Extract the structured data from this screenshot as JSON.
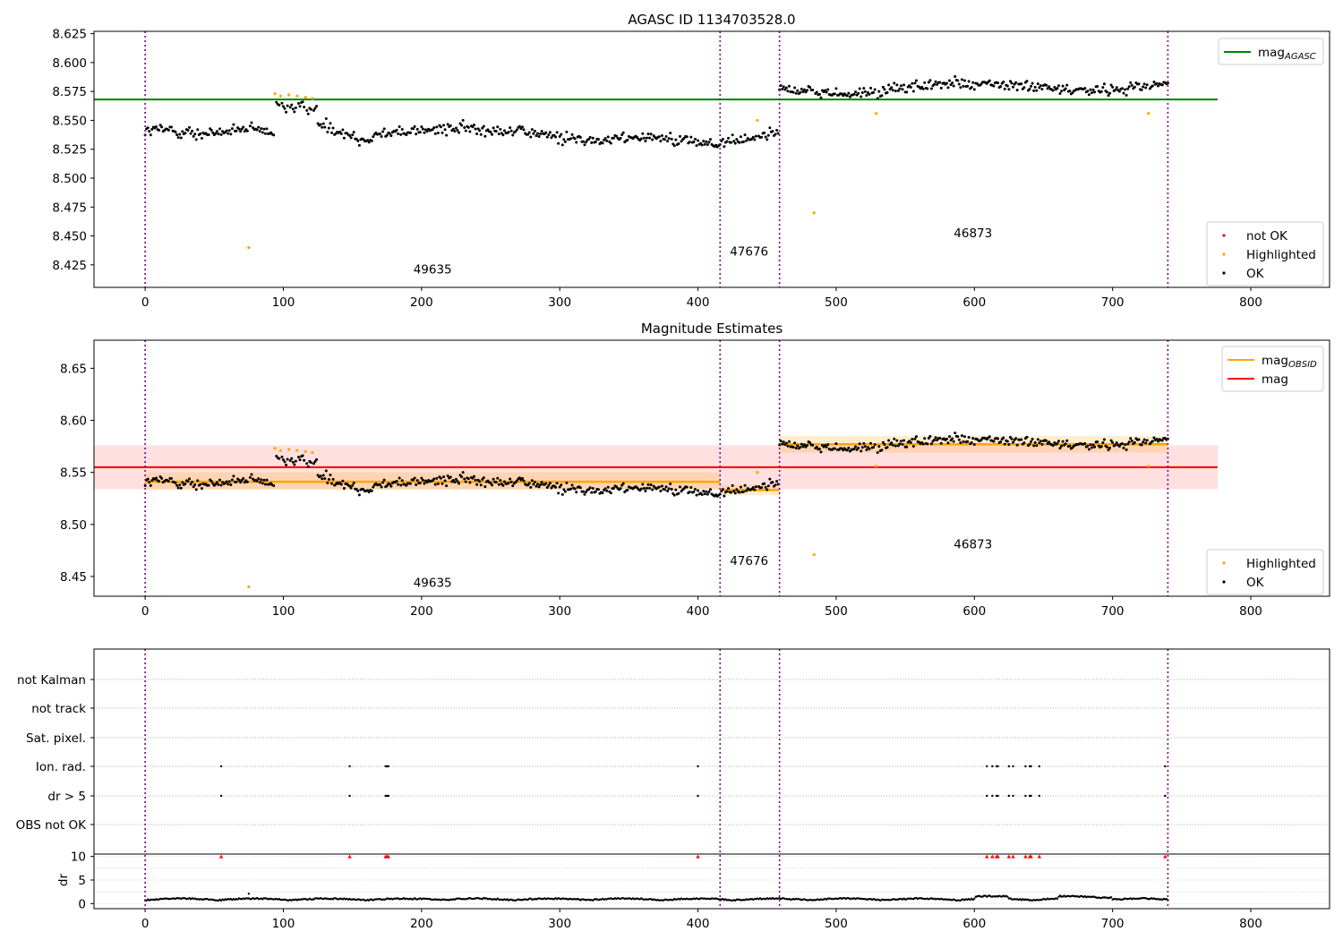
{
  "chart_data": [
    {
      "type": "scatter",
      "title": "AGASC ID 1134703528.0",
      "xlabel": "",
      "ylabel": "",
      "xlim": [
        -37,
        857
      ],
      "ylim": [
        8.4055,
        8.627
      ],
      "xticks": [
        0,
        100,
        200,
        300,
        400,
        500,
        600,
        700,
        800
      ],
      "yticks": [
        8.425,
        8.45,
        8.475,
        8.5,
        8.525,
        8.55,
        8.575,
        8.6,
        8.625
      ],
      "ytick_labels": [
        "8.425",
        "8.450",
        "8.475",
        "8.500",
        "8.525",
        "8.550",
        "8.575",
        "8.600",
        "8.625"
      ],
      "grid": false,
      "obs_boundaries": [
        0,
        416,
        459,
        740
      ],
      "obs_labels": [
        {
          "text": "49635",
          "x": 208,
          "y": 8.4175
        },
        {
          "text": "47676",
          "x": 437,
          "y": 8.433
        },
        {
          "text": "46873",
          "x": 599,
          "y": 8.449
        }
      ],
      "lines": [
        {
          "name": "mag_AGASC",
          "y": 8.568,
          "x": [
            -37,
            776
          ],
          "color": "#008000"
        }
      ],
      "legend_lines": [
        {
          "label": "mag",
          "sub": "AGASC",
          "color": "#008000"
        }
      ],
      "legend_lines_position": "top-right",
      "legend_points": [
        {
          "label": "not OK",
          "color": "#ff0000"
        },
        {
          "label": "Highlighted",
          "color": "#ffa500"
        },
        {
          "label": "OK",
          "color": "#000000"
        }
      ],
      "legend_points_position": "lower-right",
      "series": [
        {
          "name": "OK",
          "color": "#000000",
          "description": "per-sample magnitudes"
        },
        {
          "name": "Highlighted",
          "color": "#ffa500",
          "points": [
            [
              75,
              8.44
            ],
            [
              94,
              8.573
            ],
            [
              98,
              8.571
            ],
            [
              104,
              8.572
            ],
            [
              110,
              8.571
            ],
            [
              116,
              8.57
            ],
            [
              121,
              8.569
            ],
            [
              443,
              8.55
            ],
            [
              484,
              8.47
            ],
            [
              529,
              8.556
            ],
            [
              726,
              8.556
            ]
          ]
        }
      ],
      "segments": [
        {
          "x": [
            0,
            416
          ],
          "mean": 8.542
        },
        {
          "x": [
            416,
            459
          ],
          "mean": 8.532
        },
        {
          "x": [
            459,
            740
          ],
          "mean": 8.578
        }
      ]
    },
    {
      "type": "scatter",
      "title": "Magnitude Estimates",
      "xlabel": "",
      "ylabel": "",
      "xlim": [
        -37,
        857
      ],
      "ylim": [
        8.431,
        8.677
      ],
      "xticks": [
        0,
        100,
        200,
        300,
        400,
        500,
        600,
        700,
        800
      ],
      "yticks": [
        8.45,
        8.5,
        8.55,
        8.6,
        8.65
      ],
      "ytick_labels": [
        "8.45",
        "8.50",
        "8.55",
        "8.60",
        "8.65"
      ],
      "grid": false,
      "obs_boundaries": [
        0,
        416,
        459,
        740
      ],
      "obs_labels": [
        {
          "text": "49635",
          "x": 208,
          "y": 8.44
        },
        {
          "text": "47676",
          "x": 437,
          "y": 8.461
        },
        {
          "text": "46873",
          "x": 599,
          "y": 8.477
        }
      ],
      "mag": {
        "value": 8.555,
        "band": [
          8.534,
          8.576
        ],
        "x": [
          -37,
          776
        ],
        "color": "#ff0000"
      },
      "obsid_mags": [
        {
          "x": [
            0,
            416
          ],
          "value": 8.541,
          "band": [
            8.533,
            8.55
          ]
        },
        {
          "x": [
            416,
            459
          ],
          "value": 8.533,
          "band": [
            8.528,
            8.538
          ]
        },
        {
          "x": [
            459,
            740
          ],
          "value": 8.577,
          "band": [
            8.569,
            8.585
          ]
        }
      ],
      "legend_lines": [
        {
          "label": "mag",
          "sub": "OBSID",
          "color": "#ffa500"
        },
        {
          "label": "mag",
          "sub": "",
          "color": "#ff0000"
        }
      ],
      "legend_lines_position": "top-right",
      "legend_points": [
        {
          "label": "Highlighted",
          "color": "#ffa500"
        },
        {
          "label": "OK",
          "color": "#000000"
        }
      ],
      "legend_points_position": "lower-right",
      "series": [
        {
          "name": "OK",
          "color": "#000000",
          "description": "per-sample magnitudes"
        },
        {
          "name": "Highlighted",
          "color": "#ffa500",
          "points": [
            [
              75,
              8.44
            ],
            [
              94,
              8.573
            ],
            [
              98,
              8.571
            ],
            [
              104,
              8.572
            ],
            [
              110,
              8.571
            ],
            [
              116,
              8.57
            ],
            [
              121,
              8.569
            ],
            [
              443,
              8.55
            ],
            [
              484,
              8.471
            ],
            [
              529,
              8.556
            ],
            [
              726,
              8.556
            ]
          ]
        }
      ]
    },
    {
      "type": "scatter",
      "title": "",
      "xlabel": "",
      "xlim": [
        -37,
        857
      ],
      "xticks": [
        0,
        100,
        200,
        300,
        400,
        500,
        600,
        700,
        800
      ],
      "grid": true,
      "obs_boundaries": [
        0,
        416,
        459,
        740
      ],
      "flag_rows": [
        "not Kalman",
        "not track",
        "Sat. pixel.",
        "Ion. rad.",
        "dr > 5",
        "OBS not OK"
      ],
      "flag_points": {
        "Ion. rad.": [
          55,
          148,
          174,
          175,
          176,
          400,
          609,
          613,
          616,
          617,
          625,
          628,
          637,
          640,
          641,
          647,
          738
        ],
        "dr > 5": [
          55,
          148,
          174,
          175,
          176,
          400,
          609,
          613,
          616,
          617,
          625,
          628,
          637,
          640,
          641,
          647,
          738
        ]
      },
      "dr_panel": {
        "ylabel": "dr",
        "yticks": [
          0,
          5,
          10
        ],
        "ylim": [
          -0.5,
          10.5
        ],
        "clipped_color": "#ff0000",
        "clipped_x": [
          55,
          148,
          174,
          175,
          176,
          400,
          609,
          613,
          616,
          617,
          625,
          628,
          637,
          640,
          641,
          647,
          738
        ],
        "series": [
          {
            "name": "dr",
            "color": "#000000",
            "description": "per-sample dr, typically 0 to 1.6"
          }
        ]
      }
    }
  ]
}
